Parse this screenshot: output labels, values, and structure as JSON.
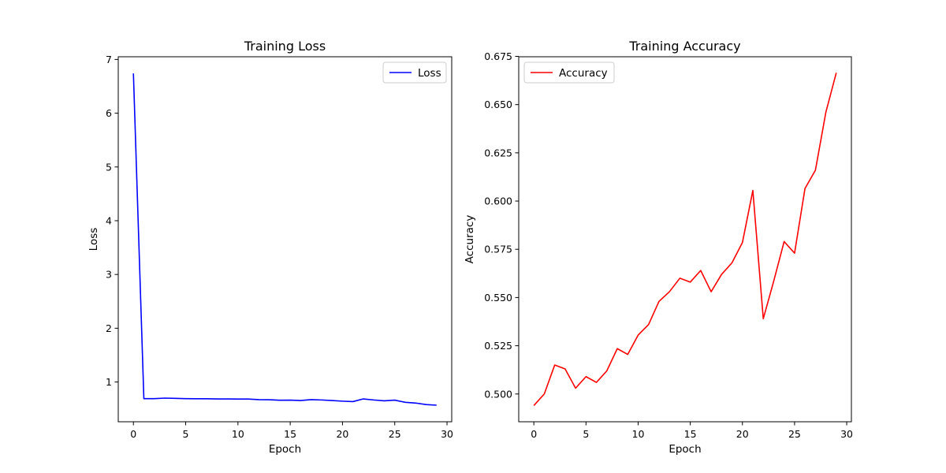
{
  "chart_data": [
    {
      "type": "line",
      "title": "Training Loss",
      "xlabel": "Epoch",
      "ylabel": "Loss",
      "xlim": [
        -1.45,
        30.45
      ],
      "ylim": [
        0.26,
        7.05
      ],
      "xticks": [
        0,
        5,
        10,
        15,
        20,
        25,
        30
      ],
      "yticks": [
        1,
        2,
        3,
        4,
        5,
        6,
        7
      ],
      "ytick_labels": [
        "1",
        "2",
        "3",
        "4",
        "5",
        "6",
        "7"
      ],
      "legend": "upper right",
      "grid": false,
      "series": [
        {
          "name": "Loss",
          "color": "#0000ff",
          "x": [
            0,
            1,
            2,
            3,
            4,
            5,
            6,
            7,
            8,
            9,
            10,
            11,
            12,
            13,
            14,
            15,
            16,
            17,
            18,
            19,
            20,
            21,
            22,
            23,
            24,
            25,
            26,
            27,
            28,
            29
          ],
          "y": [
            6.74,
            0.69,
            0.69,
            0.7,
            0.695,
            0.69,
            0.688,
            0.688,
            0.685,
            0.685,
            0.682,
            0.682,
            0.672,
            0.67,
            0.66,
            0.662,
            0.655,
            0.672,
            0.665,
            0.655,
            0.643,
            0.635,
            0.685,
            0.665,
            0.65,
            0.662,
            0.622,
            0.608,
            0.58,
            0.568
          ]
        }
      ]
    },
    {
      "type": "line",
      "title": "Training Accuracy",
      "xlabel": "Epoch",
      "ylabel": "Accuracy",
      "xlim": [
        -1.45,
        30.45
      ],
      "ylim": [
        0.4856,
        0.6748
      ],
      "xticks": [
        0,
        5,
        10,
        15,
        20,
        25,
        30
      ],
      "yticks": [
        0.5,
        0.525,
        0.55,
        0.575,
        0.6,
        0.625,
        0.65,
        0.675
      ],
      "ytick_labels": [
        "0.500",
        "0.525",
        "0.550",
        "0.575",
        "0.600",
        "0.625",
        "0.650",
        "0.675"
      ],
      "legend": "upper left",
      "grid": false,
      "series": [
        {
          "name": "Accuracy",
          "color": "#ff0000",
          "x": [
            0,
            1,
            2,
            3,
            4,
            5,
            6,
            7,
            8,
            9,
            10,
            11,
            12,
            13,
            14,
            15,
            16,
            17,
            18,
            19,
            20,
            21,
            22,
            23,
            24,
            25,
            26,
            27,
            28,
            29
          ],
          "y": [
            0.494,
            0.5,
            0.515,
            0.513,
            0.503,
            0.509,
            0.506,
            0.512,
            0.5235,
            0.5205,
            0.5305,
            0.536,
            0.548,
            0.553,
            0.56,
            0.558,
            0.564,
            0.553,
            0.562,
            0.568,
            0.5785,
            0.6055,
            0.539,
            0.5585,
            0.579,
            0.573,
            0.6065,
            0.616,
            0.646,
            0.6665
          ]
        }
      ]
    }
  ]
}
